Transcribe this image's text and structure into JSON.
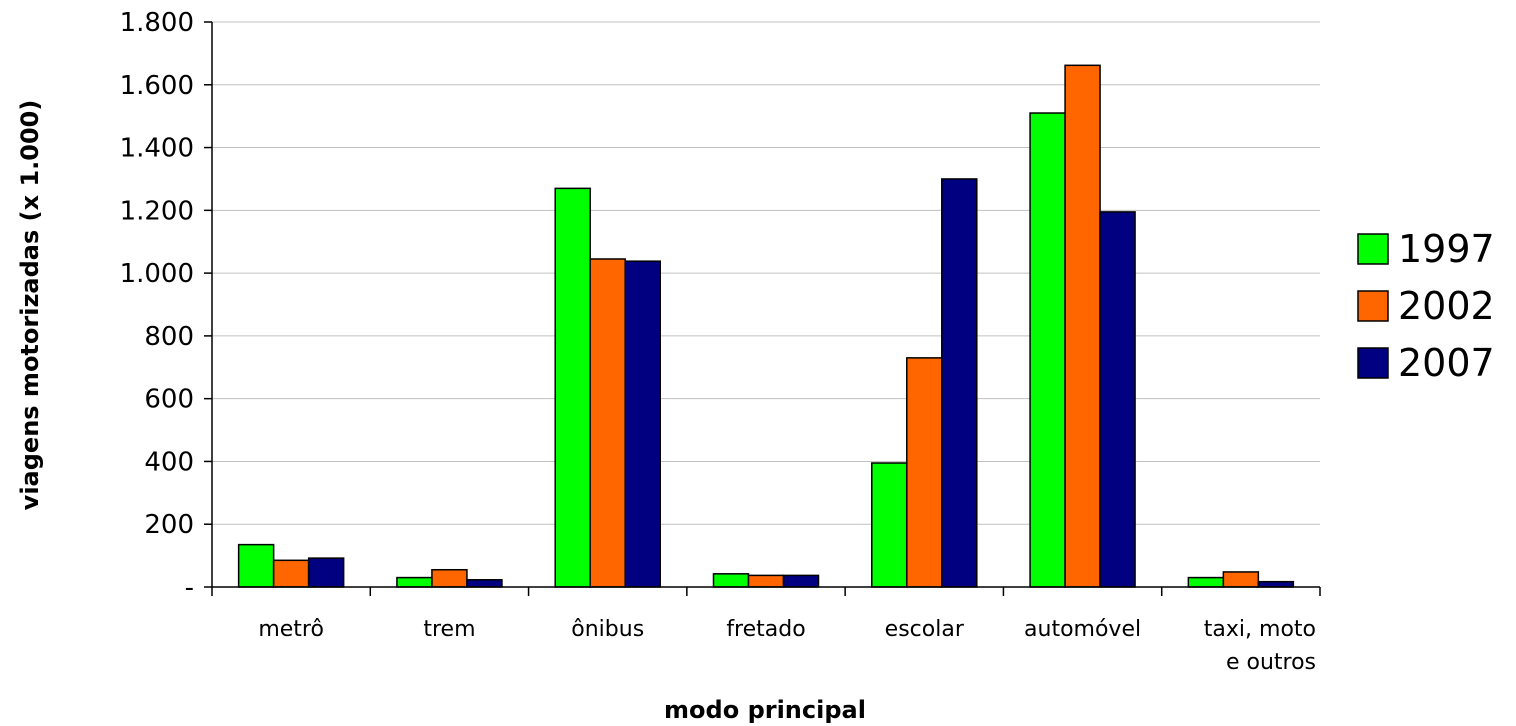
{
  "chart_data": {
    "type": "bar",
    "title": "",
    "xlabel": "modo principal",
    "ylabel": "viagens motorizadas (x 1.000)",
    "ylim": [
      0,
      1800
    ],
    "yticks": [
      0,
      200,
      400,
      600,
      800,
      1000,
      1200,
      1400,
      1600,
      1800
    ],
    "ytick_labels": [
      "-",
      "200",
      "400",
      "600",
      "800",
      "1.000",
      "1.200",
      "1.400",
      "1.600",
      "1.800"
    ],
    "categories": [
      [
        "metrô"
      ],
      [
        "trem"
      ],
      [
        "ônibus"
      ],
      [
        "fretado"
      ],
      [
        "escolar"
      ],
      [
        "automóvel"
      ],
      [
        "taxi, moto",
        "e outros"
      ]
    ],
    "series": [
      {
        "name": "1997",
        "color": "#00ff00",
        "values": [
          135,
          30,
          1270,
          42,
          395,
          1510,
          30
        ]
      },
      {
        "name": "2002",
        "color": "#ff6600",
        "values": [
          85,
          55,
          1045,
          37,
          730,
          1662,
          48
        ]
      },
      {
        "name": "2007",
        "color": "#000080",
        "values": [
          92,
          23,
          1038,
          37,
          1300,
          1195,
          17
        ]
      }
    ],
    "grid": true,
    "legend_position": "right"
  }
}
